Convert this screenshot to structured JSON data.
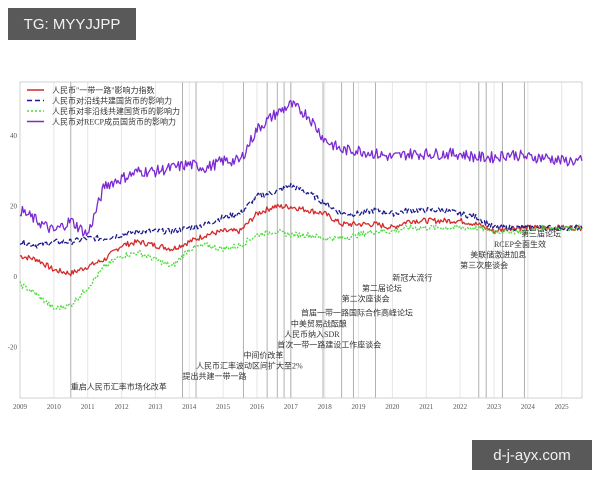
{
  "watermarks": {
    "top_left": "TG: MYYJJPP",
    "bottom_right": "d-j-ayx.com"
  },
  "colors": {
    "red": "#d42a2a",
    "blue": "#1a1a8c",
    "green": "#4cdc3c",
    "purple": "#7a2ad0",
    "event_line": "#b0b0b0",
    "grid_line": "#e6e6e6"
  },
  "chart_data": {
    "type": "line",
    "title": "",
    "xlabel": "",
    "ylabel": "",
    "x_ticks": [
      "2009",
      "2010",
      "2011",
      "2012",
      "2013",
      "2014",
      "2015",
      "2016",
      "2017",
      "2018",
      "2019",
      "2020",
      "2021",
      "2022",
      "2023",
      "2024",
      "2025"
    ],
    "y_ticks": [
      "40",
      "20",
      "0",
      "-20"
    ],
    "xlim": [
      2009.0,
      2025.6
    ],
    "ylim": [
      -34,
      55
    ],
    "legend_position": "upper left",
    "x": [
      2009.0,
      2009.5,
      2010.0,
      2010.5,
      2011.0,
      2011.5,
      2012.0,
      2012.5,
      2013.0,
      2013.5,
      2014.0,
      2014.5,
      2015.0,
      2015.5,
      2016.0,
      2016.5,
      2017.0,
      2017.5,
      2018.0,
      2018.5,
      2019.0,
      2019.5,
      2020.0,
      2020.5,
      2021.0,
      2021.5,
      2022.0,
      2022.5,
      2023.0,
      2023.5,
      2024.0,
      2024.5,
      2025.0,
      2025.6
    ],
    "series": [
      {
        "name": "人民币\"一带一路\"影响力指数",
        "style": "solid",
        "color": "#d42a2a",
        "values": [
          6,
          5,
          2,
          1,
          3,
          5,
          9,
          10,
          9,
          8,
          10,
          12,
          13,
          13,
          18,
          20,
          20,
          19,
          18,
          15,
          15,
          15,
          14,
          16,
          16,
          16,
          16,
          15,
          13,
          14,
          14,
          14,
          14,
          14
        ]
      },
      {
        "name": "人民币对沿线共建国货币的影响力",
        "style": "dashed",
        "color": "#1a1a8c",
        "values": [
          10,
          9,
          10,
          10,
          11,
          11,
          12,
          13,
          13,
          13,
          14,
          15,
          17,
          18,
          23,
          24,
          26,
          24,
          21,
          18,
          18,
          19,
          18,
          19,
          19,
          19,
          18,
          17,
          14,
          14,
          14,
          14,
          14,
          14
        ]
      },
      {
        "name": "人民币对非沿线共建国货币的影响力",
        "style": "dotted",
        "color": "#4cdc3c",
        "values": [
          -2,
          -5,
          -9,
          -8,
          -3,
          3,
          6,
          7,
          5,
          3,
          8,
          9,
          8,
          9,
          12,
          13,
          12,
          12,
          11,
          11,
          12,
          13,
          13,
          14,
          14,
          14,
          14,
          14,
          13,
          13,
          13,
          14,
          14,
          14
        ]
      },
      {
        "name": "人民币对RECP成员国货币的影响力",
        "style": "solid",
        "color": "#7a2ad0",
        "values": [
          19,
          16,
          13,
          16,
          12,
          26,
          28,
          30,
          30,
          31,
          32,
          31,
          33,
          33,
          42,
          46,
          49,
          46,
          39,
          36,
          36,
          35,
          34,
          35,
          35,
          35,
          35,
          34,
          34,
          35,
          34,
          34,
          33,
          33
        ]
      }
    ],
    "event_lines_year": [
      2010.5,
      2013.8,
      2014.2,
      2015.6,
      2016.3,
      2016.6,
      2016.8,
      2017.0,
      2017.95,
      2018.5,
      2018.85,
      2019.5,
      2022.55,
      2022.77,
      2023.25,
      2023.9
    ],
    "annotations": [
      {
        "text": "重启人民币汇率市场化改革",
        "x": 2010.5,
        "y": -32
      },
      {
        "text": "提出共建一带一路",
        "x": 2013.8,
        "y": -29
      },
      {
        "text": "人民币汇率波动区间扩大至2%",
        "x": 2014.2,
        "y": -26
      },
      {
        "text": "中间价改革",
        "x": 2015.6,
        "y": -23
      },
      {
        "text": "首次一带一路建设工作座谈会",
        "x": 2016.6,
        "y": -20
      },
      {
        "text": "人民币纳入SDR",
        "x": 2016.8,
        "y": -17
      },
      {
        "text": "中美贸易战酝酿",
        "x": 2017.0,
        "y": -14
      },
      {
        "text": "首届一带一路国际合作高峰论坛",
        "x": 2017.3,
        "y": -11
      },
      {
        "text": "第二次座谈会",
        "x": 2018.5,
        "y": -7
      },
      {
        "text": "第二届论坛",
        "x": 2019.1,
        "y": -4
      },
      {
        "text": "新冠大流行",
        "x": 2020.0,
        "y": -1
      },
      {
        "text": "第三次座谈会",
        "x": 2022.0,
        "y": 2.5
      },
      {
        "text": "美联储激进加息",
        "x": 2022.3,
        "y": 5.5
      },
      {
        "text": "RCEP全面生效",
        "x": 2023.0,
        "y": 8.5
      },
      {
        "text": "第三届论坛",
        "x": 2023.8,
        "y": 11.5
      }
    ]
  }
}
